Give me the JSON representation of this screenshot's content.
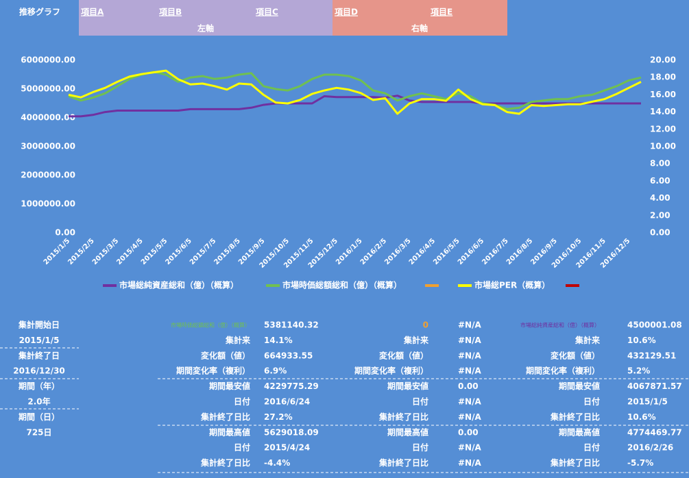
{
  "header": {
    "title": "推移グラフ",
    "items": [
      "項目A",
      "項目B",
      "項目C",
      "項目D",
      "項目E"
    ],
    "left_axis": "左軸",
    "right_axis": "右軸"
  },
  "chart_data": {
    "type": "line",
    "categories": [
      "2015/1/5",
      null,
      "2015/2/5",
      null,
      "2015/3/5",
      null,
      "2015/4/5",
      null,
      "2015/5/5",
      null,
      "2015/6/5",
      null,
      "2015/7/5",
      null,
      "2015/8/5",
      null,
      "2015/9/5",
      null,
      "2015/10/5",
      null,
      "2015/11/5",
      null,
      "2015/12/5",
      null,
      "2016/1/5",
      null,
      "2016/2/5",
      null,
      "2016/3/5",
      null,
      "2016/4/5",
      null,
      "2016/5/5",
      null,
      "2016/6/5",
      null,
      "2016/7/5",
      null,
      "2016/8/5",
      null,
      "2016/9/5",
      null,
      "2016/10/5",
      null,
      "2016/11/5",
      null,
      "2016/12/5",
      null
    ],
    "ylim": [
      0,
      6000000
    ],
    "yticks": [
      {
        "value": 0,
        "label": "0.00"
      },
      {
        "value": 1000000,
        "label": "1000000.00"
      },
      {
        "value": 2000000,
        "label": "2000000.00"
      },
      {
        "value": 3000000,
        "label": "3000000.00"
      },
      {
        "value": 4000000,
        "label": "4000000.00"
      },
      {
        "value": 5000000,
        "label": "5000000.00"
      },
      {
        "value": 6000000,
        "label": "6000000.00"
      }
    ],
    "y2lim": [
      0,
      20
    ],
    "y2ticks": [
      {
        "value": 0,
        "label": "0.00"
      },
      {
        "value": 2,
        "label": "2.00"
      },
      {
        "value": 4,
        "label": "4.00"
      },
      {
        "value": 6,
        "label": "6.00"
      },
      {
        "value": 8,
        "label": "8.00"
      },
      {
        "value": 10,
        "label": "10.00"
      },
      {
        "value": 12,
        "label": "12.00"
      },
      {
        "value": 14,
        "label": "14.00"
      },
      {
        "value": 16,
        "label": "16.00"
      },
      {
        "value": 18,
        "label": "18.00"
      },
      {
        "value": 20,
        "label": "20.00"
      }
    ],
    "series": [
      {
        "name": "市場総純資産総和（億）（概算）",
        "color": "#7030a0",
        "values": [
          4050000,
          4050000,
          4100000,
          4200000,
          4250000,
          4250000,
          4250000,
          4250000,
          4250000,
          4250000,
          4300000,
          4300000,
          4300000,
          4300000,
          4300000,
          4350000,
          4450000,
          4500000,
          4500000,
          4500000,
          4500000,
          4750000,
          4720000,
          4720000,
          4720000,
          4720000,
          4700000,
          4770000,
          4600000,
          4550000,
          4550000,
          4550000,
          4550000,
          4550000,
          4500000,
          4500000,
          4500000,
          4500000,
          4500000,
          4500000,
          4500000,
          4500000,
          4500000,
          4500000,
          4500000,
          4500000,
          4500000,
          4500000
        ]
      },
      {
        "name": "市場時価総額総和（億）（概算）",
        "color": "#70c050",
        "values": [
          4750000,
          4600000,
          4700000,
          4850000,
          5100000,
          5350000,
          5500000,
          5600000,
          5500000,
          5250000,
          5400000,
          5450000,
          5350000,
          5400000,
          5500000,
          5550000,
          5100000,
          5000000,
          4950000,
          5100000,
          5350000,
          5500000,
          5500000,
          5450000,
          5300000,
          4950000,
          4850000,
          4600000,
          4750000,
          4850000,
          4750000,
          4650000,
          4850000,
          4750000,
          4500000,
          4450000,
          4300000,
          4350000,
          4550000,
          4600000,
          4650000,
          4650000,
          4750000,
          4800000,
          4950000,
          5100000,
          5300000,
          5400000
        ]
      },
      {
        "name": "市場総PER（概算）",
        "color": "#ffff00",
        "axis": "y2",
        "values": [
          16.0,
          15.7,
          16.3,
          16.8,
          17.5,
          18.1,
          18.4,
          18.6,
          18.8,
          17.8,
          17.2,
          17.3,
          17.0,
          16.6,
          17.3,
          17.2,
          16.0,
          15.1,
          15.0,
          15.4,
          16.1,
          16.5,
          16.8,
          16.6,
          16.2,
          15.4,
          15.6,
          13.8,
          15.0,
          15.5,
          15.5,
          15.3,
          16.6,
          15.5,
          14.9,
          14.8,
          14.0,
          13.8,
          14.8,
          14.7,
          14.8,
          14.9,
          14.9,
          15.2,
          15.5,
          16.1,
          16.8,
          17.5
        ]
      }
    ]
  },
  "period": [
    "集計開始日",
    "2015/1/5",
    "集計終了日",
    "2016/12/30",
    "期間（年）",
    "2.0年",
    "期間（日）",
    "725日"
  ],
  "groups": [
    {
      "name": "市場時価総額総和（億）（概算）",
      "latest": "5381140.32",
      "rows": [
        [
          "集計来",
          "14.1%"
        ],
        [
          "変化額（値）",
          "664933.55"
        ],
        [
          "期間変化率（複利）",
          "6.9%"
        ],
        [
          "期間最安値",
          "4229775.29"
        ],
        [
          "日付",
          "2016/6/24"
        ],
        [
          "集計終了日比",
          "27.2%"
        ],
        [
          "期間最高値",
          "5629018.09"
        ],
        [
          "日付",
          "2015/4/24"
        ],
        [
          "集計終了日比",
          "-4.4%"
        ]
      ]
    },
    {
      "name": "0",
      "latest": "#N/A",
      "rows": [
        [
          "集計来",
          "#N/A"
        ],
        [
          "変化額（値）",
          "#N/A"
        ],
        [
          "期間変化率（複利）",
          "#N/A"
        ],
        [
          "期間最安値",
          "0.00"
        ],
        [
          "日付",
          "#N/A"
        ],
        [
          "集計終了日比",
          "#N/A"
        ],
        [
          "期間最高値",
          "0.00"
        ],
        [
          "日付",
          "#N/A"
        ],
        [
          "集計終了日比",
          "#N/A"
        ]
      ]
    },
    {
      "name": "市場総純資産総和（億）（概算）",
      "latest": "4500001.08",
      "rows": [
        [
          "集計来",
          "10.6%"
        ],
        [
          "変化額（値）",
          "432129.51"
        ],
        [
          "期間変化率（複利）",
          "5.2%"
        ],
        [
          "期間最安値",
          "4067871.57"
        ],
        [
          "日付",
          "2015/1/5"
        ],
        [
          "集計終了日比",
          "10.6%"
        ],
        [
          "期間最高値",
          "4774469.77"
        ],
        [
          "日付",
          "2016/2/26"
        ],
        [
          "集計終了日比",
          "-5.7%"
        ]
      ]
    }
  ]
}
